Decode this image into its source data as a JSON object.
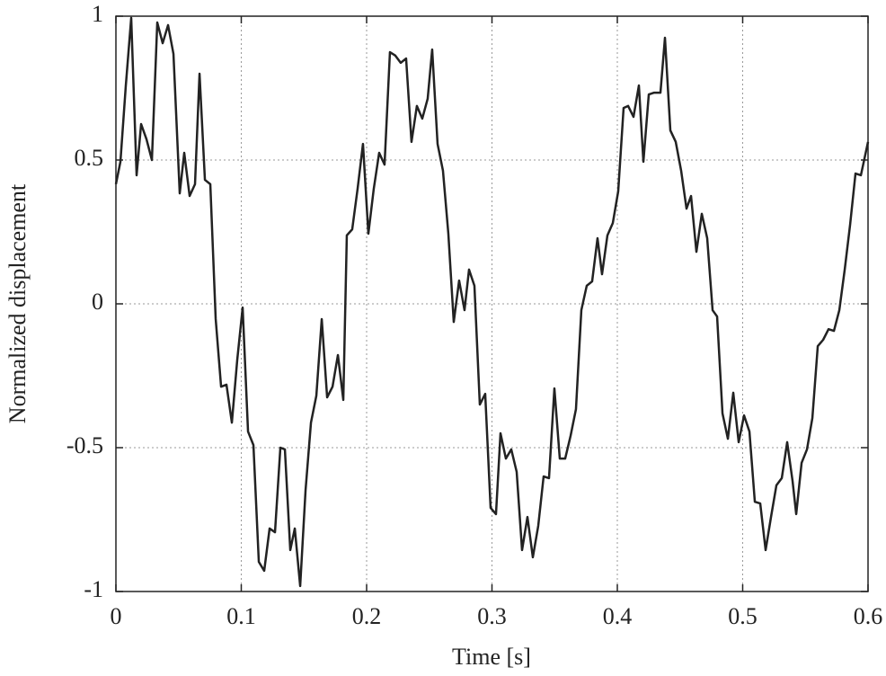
{
  "chart_data": {
    "type": "line",
    "xlabel": "Time [s]",
    "ylabel": "Normalized displacement",
    "xlim": [
      0,
      0.6
    ],
    "ylim": [
      -1,
      1
    ],
    "xticks": [
      0,
      0.1,
      0.2,
      0.3,
      0.4,
      0.5,
      0.6
    ],
    "yticks": [
      -1,
      -0.5,
      0,
      0.5,
      1
    ],
    "grid": true,
    "series": [
      {
        "color": "#222222",
        "x": [
          0,
          0.0036,
          0.0079,
          0.0122,
          0.0165,
          0.0201,
          0.0244,
          0.0287,
          0.033,
          0.0373,
          0.0416,
          0.0459,
          0.0509,
          0.0545,
          0.0588,
          0.0631,
          0.0667,
          0.071,
          0.0753,
          0.0796,
          0.0839,
          0.0882,
          0.0925,
          0.0968,
          0.1011,
          0.1054,
          0.1097,
          0.114,
          0.1183,
          0.1226,
          0.1269,
          0.1312,
          0.1348,
          0.1391,
          0.1427,
          0.147,
          0.1513,
          0.1556,
          0.1599,
          0.1642,
          0.1685,
          0.1728,
          0.1771,
          0.1814,
          0.1842,
          0.1885,
          0.1928,
          0.1971,
          0.2014,
          0.2057,
          0.21,
          0.2143,
          0.2186,
          0.2229,
          0.2272,
          0.2315,
          0.2358,
          0.2401,
          0.2444,
          0.2487,
          0.2523,
          0.2566,
          0.2609,
          0.2652,
          0.2695,
          0.2738,
          0.2781,
          0.2817,
          0.286,
          0.2903,
          0.2946,
          0.2989,
          0.3032,
          0.3068,
          0.3111,
          0.3154,
          0.3197,
          0.324,
          0.3283,
          0.3326,
          0.3369,
          0.3412,
          0.3455,
          0.3498,
          0.3541,
          0.3584,
          0.3627,
          0.367,
          0.3713,
          0.3756,
          0.3799,
          0.3842,
          0.3878,
          0.3921,
          0.3964,
          0.4007,
          0.405,
          0.4086,
          0.4129,
          0.4172,
          0.4208,
          0.4251,
          0.4294,
          0.4344,
          0.438,
          0.4423,
          0.4466,
          0.4509,
          0.4552,
          0.4588,
          0.4631,
          0.4674,
          0.4717,
          0.476,
          0.4796,
          0.4839,
          0.4882,
          0.4925,
          0.4968,
          0.5011,
          0.5054,
          0.5097,
          0.514,
          0.5183,
          0.5226,
          0.5269,
          0.5312,
          0.5355,
          0.5398,
          0.5427,
          0.547,
          0.5513,
          0.5556,
          0.5599,
          0.5642,
          0.5685,
          0.5728,
          0.5771,
          0.5814,
          0.5857,
          0.59,
          0.5943,
          0.6
        ],
        "values": [
          0.416,
          0.494,
          0.759,
          0.994,
          0.447,
          0.625,
          0.572,
          0.5,
          0.978,
          0.906,
          0.969,
          0.869,
          0.384,
          0.525,
          0.375,
          0.416,
          0.8,
          0.431,
          0.416,
          -0.053,
          -0.288,
          -0.281,
          -0.413,
          -0.194,
          -0.013,
          -0.444,
          -0.491,
          -0.897,
          -0.928,
          -0.781,
          -0.794,
          -0.5,
          -0.506,
          -0.856,
          -0.781,
          -0.981,
          -0.647,
          -0.413,
          -0.319,
          -0.053,
          -0.325,
          -0.288,
          -0.178,
          -0.334,
          0.238,
          0.259,
          0.4,
          0.556,
          0.244,
          0.4,
          0.525,
          0.484,
          0.875,
          0.863,
          0.838,
          0.853,
          0.563,
          0.688,
          0.644,
          0.713,
          0.884,
          0.556,
          0.463,
          0.244,
          -0.063,
          0.081,
          -0.022,
          0.119,
          0.063,
          -0.35,
          -0.313,
          -0.709,
          -0.731,
          -0.45,
          -0.538,
          -0.506,
          -0.584,
          -0.856,
          -0.741,
          -0.881,
          -0.772,
          -0.6,
          -0.606,
          -0.294,
          -0.538,
          -0.538,
          -0.459,
          -0.366,
          -0.022,
          0.063,
          0.078,
          0.228,
          0.103,
          0.238,
          0.281,
          0.391,
          0.681,
          0.688,
          0.65,
          0.759,
          0.494,
          0.728,
          0.734,
          0.734,
          0.925,
          0.603,
          0.563,
          0.463,
          0.331,
          0.375,
          0.181,
          0.313,
          0.228,
          -0.022,
          -0.044,
          -0.381,
          -0.469,
          -0.309,
          -0.481,
          -0.388,
          -0.444,
          -0.688,
          -0.694,
          -0.856,
          -0.741,
          -0.631,
          -0.606,
          -0.481,
          -0.616,
          -0.731,
          -0.553,
          -0.506,
          -0.397,
          -0.147,
          -0.125,
          -0.088,
          -0.094,
          -0.022,
          0.119,
          0.275,
          0.453,
          0.447,
          0.563
        ]
      }
    ]
  }
}
